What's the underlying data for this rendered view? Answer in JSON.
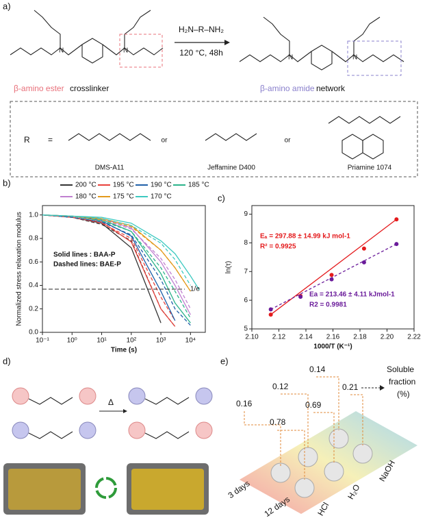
{
  "panels": {
    "a": {
      "label": "a)",
      "reagent": "H₂N–R–NH₂",
      "conditions": "120 °C, 48h",
      "ester_label": "β-amino ester",
      "ester_suffix": "crosslinker",
      "amide_label": "β-amino amide",
      "amide_suffix": "network",
      "r_symbol": "R",
      "equals": "=",
      "option_1": "DMS-A11",
      "or_1": "or",
      "option_2": "Jeffamine D400",
      "or_2": "or",
      "option_3": "Priamine 1074"
    },
    "b": {
      "label": "b)"
    },
    "c": {
      "label": "c)"
    },
    "d": {
      "label": "d)",
      "arrow_label": "Δ"
    },
    "e": {
      "label": "e)",
      "values_3_days": [
        0.16,
        0.12,
        0.14
      ],
      "values_12_days": [
        0.78,
        0.69,
        0.21
      ],
      "title_lines": [
        "Soluble",
        "fraction",
        "(%)"
      ],
      "time_labels": [
        "3 days",
        "12 days"
      ],
      "media": [
        "HCl",
        "H₂O",
        "NaOH"
      ]
    }
  },
  "chart_data": [
    {
      "type": "line",
      "x_label": "Time (s)",
      "y_label": "Normalized stress relaxation modulus",
      "log_x": true,
      "xlim": [
        0.1,
        31623
      ],
      "xticks": [
        {
          "value": 0.1,
          "label": "10⁻¹"
        },
        {
          "value": 1,
          "label": "10⁰"
        },
        {
          "value": 10,
          "label": "10¹"
        },
        {
          "value": 100,
          "label": "10²"
        },
        {
          "value": 1000,
          "label": "10³"
        },
        {
          "value": 10000,
          "label": "10⁴"
        }
      ],
      "ylim": [
        0,
        1.08
      ],
      "yticks": [
        {
          "value": 0,
          "label": "0.0"
        },
        0.2,
        0.4,
        0.6,
        0.8,
        {
          "value": 1,
          "label": "1.0"
        }
      ],
      "x": [
        0.1,
        1,
        10,
        100,
        1000,
        3000,
        10000,
        20000
      ],
      "series": [
        {
          "name": "200 °C",
          "color": "#333333",
          "values": [
            1.0,
            0.98,
            0.93,
            0.72,
            0.08,
            null,
            null,
            null
          ],
          "values_bae": [
            1.0,
            0.98,
            0.92,
            0.78,
            0.2,
            0.05,
            null,
            null
          ]
        },
        {
          "name": "195 °C",
          "color": "#e8403a",
          "values": [
            1.0,
            0.98,
            0.94,
            0.77,
            0.2,
            0.05,
            null,
            null
          ],
          "values_bae": [
            1.0,
            0.98,
            0.93,
            0.8,
            0.3,
            0.1,
            null,
            null
          ]
        },
        {
          "name": "190 °C",
          "color": "#1f5fa8",
          "values": [
            1.0,
            0.99,
            0.95,
            0.82,
            0.35,
            0.1,
            null,
            null
          ],
          "values_bae": [
            1.0,
            0.98,
            0.94,
            0.83,
            0.45,
            0.2,
            0.06,
            null
          ]
        },
        {
          "name": "185 °C",
          "color": "#2bb38a",
          "values": [
            1.0,
            0.99,
            0.96,
            0.86,
            0.5,
            0.25,
            0.08,
            null
          ],
          "values_bae": [
            1.0,
            0.99,
            0.95,
            0.86,
            0.55,
            0.35,
            0.12,
            null
          ]
        },
        {
          "name": "180 °C",
          "color": "#c07fd0",
          "values": [
            1.0,
            0.99,
            0.97,
            0.89,
            0.6,
            0.4,
            0.15,
            null
          ],
          "values_bae": [
            1.0,
            0.99,
            0.96,
            0.88,
            0.63,
            0.45,
            0.2,
            null
          ]
        },
        {
          "name": "175 °C",
          "color": "#e39a1b",
          "values": [
            1.0,
            0.99,
            0.97,
            0.91,
            0.7,
            0.55,
            0.35,
            null
          ],
          "values_bae": [
            1.0,
            0.99,
            0.96,
            0.9,
            0.7,
            0.55,
            0.35,
            null
          ]
        },
        {
          "name": "170 °C",
          "color": "#3cc9c0",
          "values": [
            1.0,
            0.99,
            0.98,
            0.93,
            0.78,
            0.67,
            0.48,
            0.36
          ],
          "values_bae": [
            1.0,
            0.99,
            0.97,
            0.91,
            0.76,
            0.62,
            0.4,
            null
          ]
        }
      ],
      "reference_line": {
        "value": 0.368,
        "label": "1/e"
      },
      "annotations": [
        "Solid lines   : BAA-P",
        "Dashed lines: BAE-P"
      ]
    },
    {
      "type": "scatter",
      "x_label": "1000/T (K⁻¹)",
      "y_label": "ln(τ)",
      "xlim": [
        2.1,
        2.22
      ],
      "xticks": [
        {
          "value": 2.1,
          "label": "2.10"
        },
        2.12,
        2.14,
        2.16,
        2.18,
        {
          "value": 2.2,
          "label": "2.20"
        },
        2.22
      ],
      "ylim": [
        5,
        9.3
      ],
      "yticks": [
        5,
        6,
        7,
        8,
        9
      ],
      "x": [
        2.114,
        2.136,
        2.159,
        2.183,
        2.207
      ],
      "series": [
        {
          "color": "#e41a1c",
          "line": "solid",
          "values": [
            5.5,
            6.15,
            6.88,
            7.8,
            8.82
          ],
          "annotations": [
            "Eₐ = 297.88 ± 14.99 kJ mol-1",
            "R² = 0.9925"
          ]
        },
        {
          "color": "#6a1b9a",
          "line": "dashed",
          "values": [
            5.68,
            6.12,
            6.73,
            7.32,
            7.96
          ],
          "annotations": [
            "Ea = 213.46 ± 4.11 kJmol-1",
            "R2 = 0.9981"
          ]
        }
      ]
    }
  ]
}
